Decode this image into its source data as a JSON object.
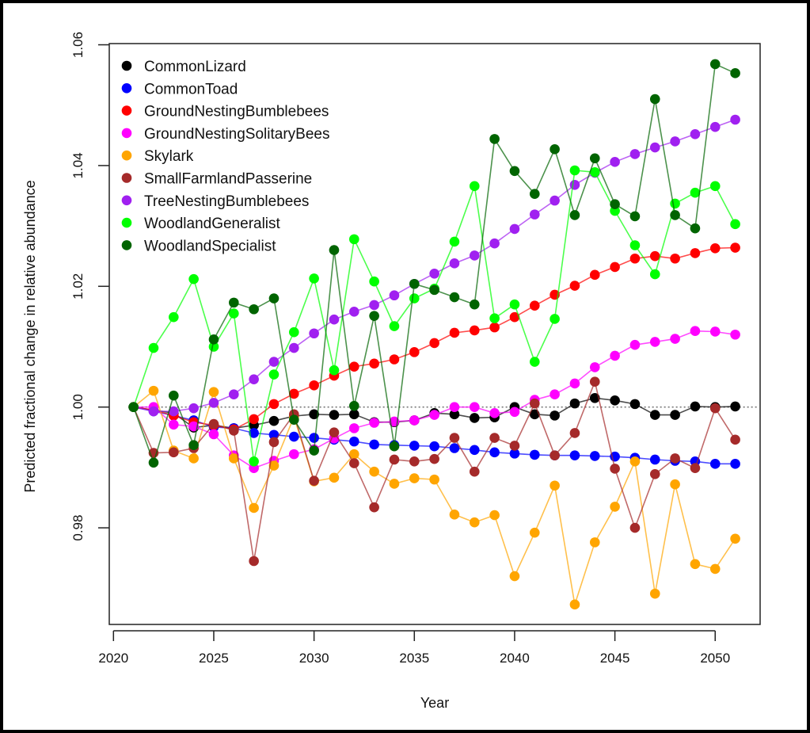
{
  "chart_data": {
    "type": "line",
    "title": "",
    "xlabel": "Year",
    "ylabel": "Predicted fractional change in relative abundance",
    "xlim": [
      2019.79,
      2052.24
    ],
    "ylim": [
      0.964,
      1.0602
    ],
    "xticks": [
      2020,
      2025,
      2030,
      2035,
      2040,
      2045,
      2050
    ],
    "xtick_labels": [
      "2020",
      "2025",
      "2030",
      "2035",
      "2040",
      "2045",
      "2050"
    ],
    "yticks": [
      0.98,
      1.0,
      1.02,
      1.04,
      1.06
    ],
    "ytick_labels": [
      "0.98",
      "1.00",
      "1.02",
      "1.04",
      "1.06"
    ],
    "reference_line": {
      "y": 1.0,
      "style": "dotted",
      "color": "#777777"
    },
    "grid": false,
    "legend_position": "top-left",
    "x": [
      2021,
      2022,
      2023,
      2024,
      2025,
      2026,
      2027,
      2028,
      2029,
      2030,
      2031,
      2032,
      2033,
      2034,
      2035,
      2036,
      2037,
      2038,
      2039,
      2040,
      2041,
      2042,
      2043,
      2044,
      2045,
      2046,
      2047,
      2048,
      2049,
      2050,
      2051
    ],
    "series": [
      {
        "name": "CommonLizard",
        "color": "#000000",
        "values": [
          1.0,
          0.9995,
          0.999,
          0.9966,
          0.997,
          0.9965,
          0.997,
          0.9977,
          0.9985,
          0.9988,
          0.9987,
          0.9988,
          0.9975,
          0.9975,
          0.9978,
          0.999,
          0.9988,
          0.9982,
          0.9983,
          1.0,
          0.9988,
          0.9986,
          1.0006,
          1.0015,
          1.0011,
          1.0005,
          0.9987,
          0.9987,
          1.0001,
          1.0,
          1.0001
        ]
      },
      {
        "name": "CommonToad",
        "color": "#0000FF",
        "values": [
          1.0,
          0.9993,
          0.9986,
          0.9978,
          0.9967,
          0.9965,
          0.9957,
          0.9954,
          0.9951,
          0.9949,
          0.9946,
          0.9943,
          0.9938,
          0.9937,
          0.9936,
          0.9935,
          0.9932,
          0.9929,
          0.9925,
          0.9923,
          0.9921,
          0.992,
          0.992,
          0.9919,
          0.9918,
          0.9916,
          0.9913,
          0.9911,
          0.991,
          0.9906,
          0.9906
        ]
      },
      {
        "name": "GroundNestingBumblebees",
        "color": "#FF0000",
        "values": [
          1.0,
          0.9995,
          0.9986,
          0.9975,
          0.997,
          0.9963,
          0.998,
          1.0005,
          1.0022,
          1.0036,
          1.0052,
          1.0067,
          1.0072,
          1.0079,
          1.0091,
          1.0106,
          1.0123,
          1.0127,
          1.0132,
          1.0149,
          1.0168,
          1.0186,
          1.0201,
          1.0219,
          1.0232,
          1.0246,
          1.025,
          1.0246,
          1.0255,
          1.0263,
          1.0264
        ]
      },
      {
        "name": "GroundNestingSolitaryBees",
        "color": "#FF00FF",
        "values": [
          1.0,
          1.0,
          0.9971,
          0.9968,
          0.9955,
          0.992,
          0.9899,
          0.9911,
          0.9922,
          0.993,
          0.9948,
          0.9965,
          0.9974,
          0.9976,
          0.9978,
          0.9987,
          1.0,
          1.0,
          0.999,
          0.9992,
          1.0012,
          1.0021,
          1.0039,
          1.0066,
          1.0085,
          1.0103,
          1.0108,
          1.0113,
          1.0126,
          1.0125,
          1.012
        ]
      },
      {
        "name": "Skylark",
        "color": "#FFA500",
        "values": [
          1.0,
          1.0027,
          0.9928,
          0.9915,
          1.0025,
          0.9915,
          0.9833,
          0.9903,
          0.9984,
          0.9877,
          0.9883,
          0.9922,
          0.9893,
          0.9873,
          0.9882,
          0.988,
          0.9822,
          0.9809,
          0.9821,
          0.972,
          0.9792,
          0.987,
          0.9673,
          0.9776,
          0.9835,
          0.991,
          0.9691,
          0.9872,
          0.974,
          0.9732,
          0.9782
        ]
      },
      {
        "name": "SmallFarmlandPasserine",
        "color": "#A52A2A",
        "values": [
          1.0,
          0.9924,
          0.9925,
          0.9932,
          0.9972,
          0.9961,
          0.9745,
          0.9942,
          0.9988,
          0.9878,
          0.9958,
          0.9907,
          0.9834,
          0.9913,
          0.991,
          0.9914,
          0.9949,
          0.9893,
          0.9949,
          0.9936,
          1.0006,
          0.992,
          0.9957,
          1.0042,
          0.9898,
          0.98,
          0.9889,
          0.9915,
          0.9899,
          0.9998,
          0.9946
        ]
      },
      {
        "name": "TreeNestingBumblebees",
        "color": "#A020F0",
        "values": [
          1.0,
          0.9993,
          0.9993,
          0.9998,
          1.0007,
          1.0021,
          1.0046,
          1.0075,
          1.0098,
          1.0122,
          1.0145,
          1.0158,
          1.0169,
          1.0185,
          1.0204,
          1.0221,
          1.0238,
          1.0251,
          1.0271,
          1.0295,
          1.0319,
          1.0342,
          1.0368,
          1.0388,
          1.0406,
          1.0419,
          1.043,
          1.044,
          1.0452,
          1.0464,
          1.0476
        ]
      },
      {
        "name": "WoodlandGeneralist",
        "color": "#00FF00",
        "values": [
          1.0,
          1.0098,
          1.0149,
          1.0212,
          1.01,
          1.0155,
          0.991,
          1.0054,
          1.0124,
          1.0213,
          1.0061,
          1.0278,
          1.0208,
          1.0134,
          1.018,
          1.0196,
          1.0274,
          1.0366,
          1.0147,
          1.017,
          1.0075,
          1.0146,
          1.0392,
          1.0389,
          1.0325,
          1.0268,
          1.022,
          1.0337,
          1.0355,
          1.0366,
          1.0303
        ]
      },
      {
        "name": "WoodlandSpecialist",
        "color": "#006400",
        "values": [
          1.0,
          0.9908,
          1.0019,
          0.9937,
          1.0112,
          1.0173,
          1.0162,
          1.018,
          0.9979,
          0.9928,
          1.026,
          1.0002,
          1.0151,
          0.9935,
          1.0204,
          1.0194,
          1.0182,
          1.017,
          1.0444,
          1.0391,
          1.0353,
          1.0427,
          1.0318,
          1.0412,
          1.0336,
          1.0316,
          1.051,
          1.0318,
          1.0296,
          1.0568,
          1.0553
        ]
      }
    ]
  }
}
